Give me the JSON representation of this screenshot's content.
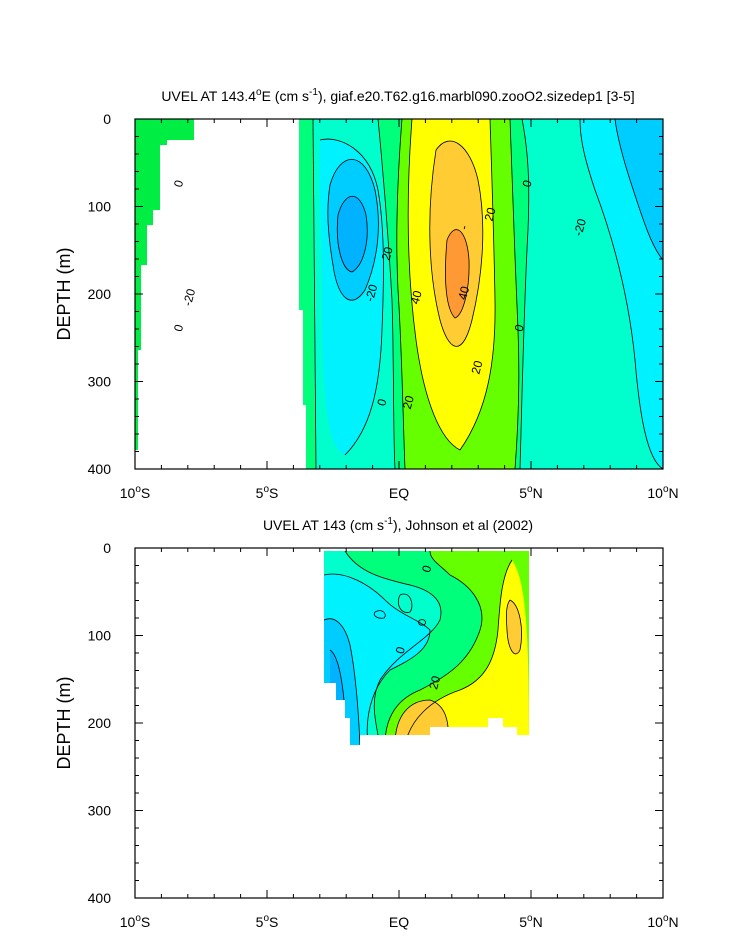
{
  "chart_data": [
    {
      "type": "contour",
      "title_prefix": "UVEL AT 143.4",
      "title_deg": "o",
      "title_mid": "E (cm s",
      "title_exp": "-1",
      "title_suffix": "), giaf.e20.T62.g16.marbl090.zooO2.sizedep1 [3-5]",
      "ylabel": "DEPTH (m)",
      "xlim": [
        -10,
        10
      ],
      "ylim": [
        0,
        400
      ],
      "y_reversed": true,
      "x_ticks": [
        {
          "value": -10,
          "num": "10",
          "deg": "o",
          "hem": "S"
        },
        {
          "value": -5,
          "num": "5",
          "deg": "o",
          "hem": "S"
        },
        {
          "value": 0,
          "num": "EQ",
          "deg": "",
          "hem": ""
        },
        {
          "value": 5,
          "num": "5",
          "deg": "o",
          "hem": "N"
        },
        {
          "value": 10,
          "num": "10",
          "deg": "o",
          "hem": "N"
        }
      ],
      "y_ticks": [
        0,
        100,
        200,
        300,
        400
      ],
      "contour_labels": [
        {
          "text": "0",
          "lat": -8.2,
          "depth": 75
        },
        {
          "text": "0",
          "lat": -8.2,
          "depth": 240
        },
        {
          "text": "-20",
          "lat": -7.8,
          "depth": 205
        },
        {
          "text": "-20",
          "lat": -0.9,
          "depth": 200
        },
        {
          "text": "20",
          "lat": -0.3,
          "depth": 155
        },
        {
          "text": "40",
          "lat": 0.8,
          "depth": 205
        },
        {
          "text": "40",
          "lat": 2.6,
          "depth": 200
        },
        {
          "text": "-",
          "lat": 2.6,
          "depth": 125
        },
        {
          "text": "20",
          "lat": 3.6,
          "depth": 110
        },
        {
          "text": "0",
          "lat": 5.0,
          "depth": 75
        },
        {
          "text": "0",
          "lat": 4.7,
          "depth": 240
        },
        {
          "text": "20",
          "lat": 3.1,
          "depth": 285
        },
        {
          "text": "0",
          "lat": -0.5,
          "depth": 325
        },
        {
          "text": "20",
          "lat": 0.5,
          "depth": 325
        },
        {
          "text": "-20",
          "lat": 7.0,
          "depth": 125
        }
      ]
    },
    {
      "type": "contour",
      "title_prefix": "UVEL AT 143 (cm s",
      "title_exp": "-1",
      "title_suffix": "), Johnson et al (2002)",
      "ylabel": "DEPTH (m)",
      "xlim": [
        -10,
        10
      ],
      "ylim": [
        0,
        400
      ],
      "y_reversed": true,
      "x_ticks": [
        {
          "value": -10,
          "num": "10",
          "deg": "o",
          "hem": "S"
        },
        {
          "value": -5,
          "num": "5",
          "deg": "o",
          "hem": "S"
        },
        {
          "value": 0,
          "num": "EQ",
          "deg": "",
          "hem": ""
        },
        {
          "value": 5,
          "num": "5",
          "deg": "o",
          "hem": "N"
        },
        {
          "value": 10,
          "num": "10",
          "deg": "o",
          "hem": "N"
        }
      ],
      "y_ticks": [
        0,
        100,
        200,
        300,
        400
      ],
      "contour_labels": [
        {
          "text": "0",
          "lat": 1.2,
          "depth": 25
        },
        {
          "text": "0",
          "lat": 0.2,
          "depth": 118
        },
        {
          "text": "20",
          "lat": 1.5,
          "depth": 155
        }
      ]
    }
  ],
  "colors": {
    "strong_westward": "#00b2ff",
    "westward": "#00cdff",
    "weak_westward": "#00f2ff",
    "near_zero": "#00ffcc",
    "weak_eastward": "#00ff7a",
    "eastward": "#66ff00",
    "moderate_eastward": "#ffff00",
    "strong_eastward": "#ffcc33",
    "very_strong_eastward": "#ff9933",
    "land": "#00ee44"
  }
}
